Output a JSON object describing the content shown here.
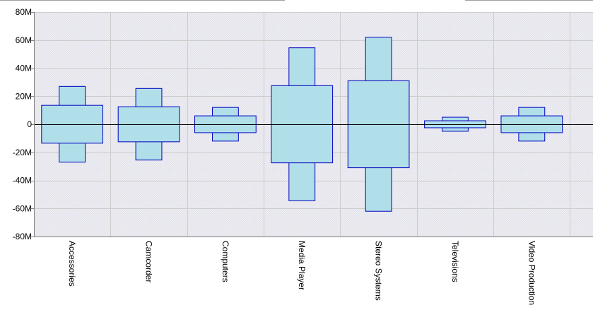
{
  "chart_data": {
    "type": "bar",
    "title": "",
    "xlabel": "",
    "ylabel": "",
    "ylim": [
      -80,
      80
    ],
    "y_ticks": [
      "-80M",
      "-60M",
      "-40M",
      "-20M",
      "0",
      "20M",
      "40M",
      "60M",
      "80M"
    ],
    "y_tick_values": [
      -80,
      -60,
      -40,
      -20,
      0,
      20,
      40,
      60,
      80
    ],
    "grid": true,
    "categories": [
      "Accessories",
      "Camcorder",
      "Computers",
      "Media Player",
      "Stereo Systems",
      "Televisions",
      "Video Production"
    ],
    "series": [
      {
        "values": [
          13.5,
          12.5,
          6,
          27.5,
          31,
          2.5,
          6
        ]
      },
      {
        "values": [
          27,
          25.5,
          12,
          54.5,
          62,
          5,
          12
        ]
      }
    ],
    "colors": {
      "fill": "#b0dfe9",
      "stroke": "#0000c0",
      "zero_line": "#000000",
      "grid": "#cccccc",
      "plot_bg": "#ededf2"
    }
  }
}
